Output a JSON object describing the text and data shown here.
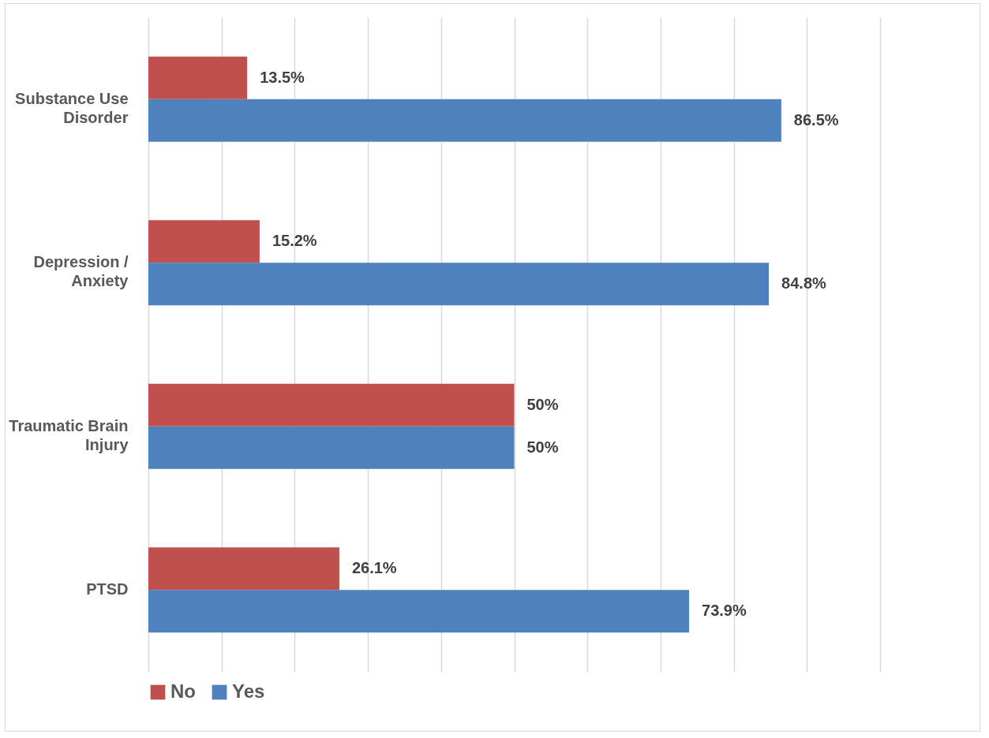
{
  "chart_data": {
    "type": "bar",
    "orientation": "horizontal",
    "categories": [
      "Substance Use Disorder",
      "Depression / Anxiety",
      "Traumatic Brain Injury",
      "PTSD"
    ],
    "series": [
      {
        "name": "No",
        "color": "#c0504d",
        "values": [
          13.5,
          15.2,
          50,
          26.1
        ],
        "value_labels": [
          "13.5%",
          "15.2%",
          "50%",
          "26.1%"
        ]
      },
      {
        "name": "Yes",
        "color": "#4f81bd",
        "values": [
          86.5,
          84.8,
          50,
          73.9
        ],
        "value_labels": [
          "86.5%",
          "84.8%",
          "50%",
          "73.9%"
        ]
      }
    ],
    "xlim": [
      0,
      100
    ],
    "xticks": [
      {
        "value": 0,
        "label": null
      },
      {
        "value": 10,
        "label": null
      },
      {
        "value": 20,
        "label": null
      },
      {
        "value": 30,
        "label": null
      },
      {
        "value": 40,
        "label": null
      },
      {
        "value": 50,
        "label": null
      },
      {
        "value": 60,
        "label": null
      },
      {
        "value": 70,
        "label": null
      },
      {
        "value": 80,
        "label": null
      },
      {
        "value": 90,
        "label": null
      },
      {
        "value": 100,
        "label": null
      }
    ],
    "grid": "x",
    "legend": "bottom",
    "tick_labels": "y"
  }
}
